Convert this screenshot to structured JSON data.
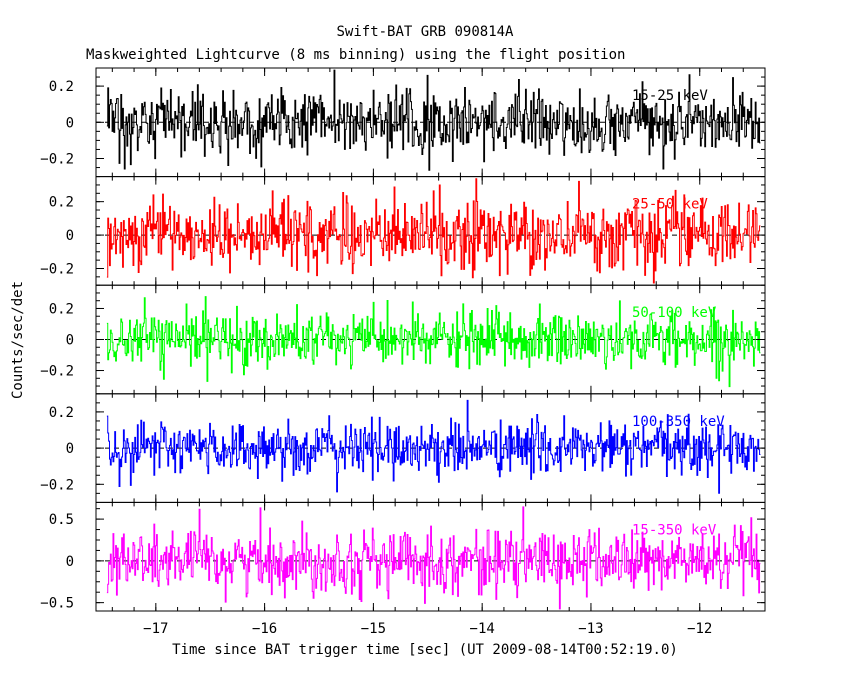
{
  "chart_data": {
    "type": "line",
    "title": "Swift-BAT GRB 090814A",
    "subtitle": "Maskweighted Lightcurve (8 ms binning) using the flight position",
    "xlabel": "Time since BAT trigger time [sec] (UT 2009-08-14T00:52:19.0)",
    "ylabel": "Counts/sec/det",
    "xlim": [
      -17.55,
      -11.4
    ],
    "x_ticks": [
      "-17",
      "-16",
      "-15",
      "-14",
      "-13",
      "-12"
    ],
    "x_tick_values": [
      -17,
      -16,
      -15,
      -14,
      -13,
      -12
    ],
    "data_range": [
      -17.45,
      -11.45
    ],
    "bin_width": 0.008,
    "panels": [
      {
        "name": "15-25 keV",
        "color": "#000000",
        "ylim": [
          -0.3,
          0.3
        ],
        "y_ticks": [
          -0.2,
          0,
          0.2
        ],
        "y_tick_labels": [
          "−0.2",
          "0",
          "0.2"
        ],
        "amplitude": 0.09
      },
      {
        "name": "25-50 keV",
        "color": "#ff0000",
        "ylim": [
          -0.3,
          0.35
        ],
        "y_ticks": [
          -0.2,
          0,
          0.2
        ],
        "y_tick_labels": [
          "−0.2",
          "0",
          "0.2"
        ],
        "amplitude": 0.1
      },
      {
        "name": "50-100 keV",
        "color": "#00ff00",
        "ylim": [
          -0.35,
          0.35
        ],
        "y_ticks": [
          -0.2,
          0,
          0.2
        ],
        "y_tick_labels": [
          "−0.2",
          "0",
          "0.2"
        ],
        "amplitude": 0.09
      },
      {
        "name": "100-350 keV",
        "color": "#0000ff",
        "ylim": [
          -0.3,
          0.3
        ],
        "y_ticks": [
          -0.2,
          0,
          0.2
        ],
        "y_tick_labels": [
          "−0.2",
          "0",
          "0.2"
        ],
        "amplitude": 0.075
      },
      {
        "name": "15-350 keV",
        "color": "#ff00ff",
        "ylim": [
          -0.6,
          0.7
        ],
        "y_ticks": [
          -0.5,
          0,
          0.5
        ],
        "y_tick_labels": [
          "−0.5",
          "0",
          "0.5"
        ],
        "amplitude": 0.19
      }
    ],
    "zero_line": "dashed",
    "grid": false
  }
}
